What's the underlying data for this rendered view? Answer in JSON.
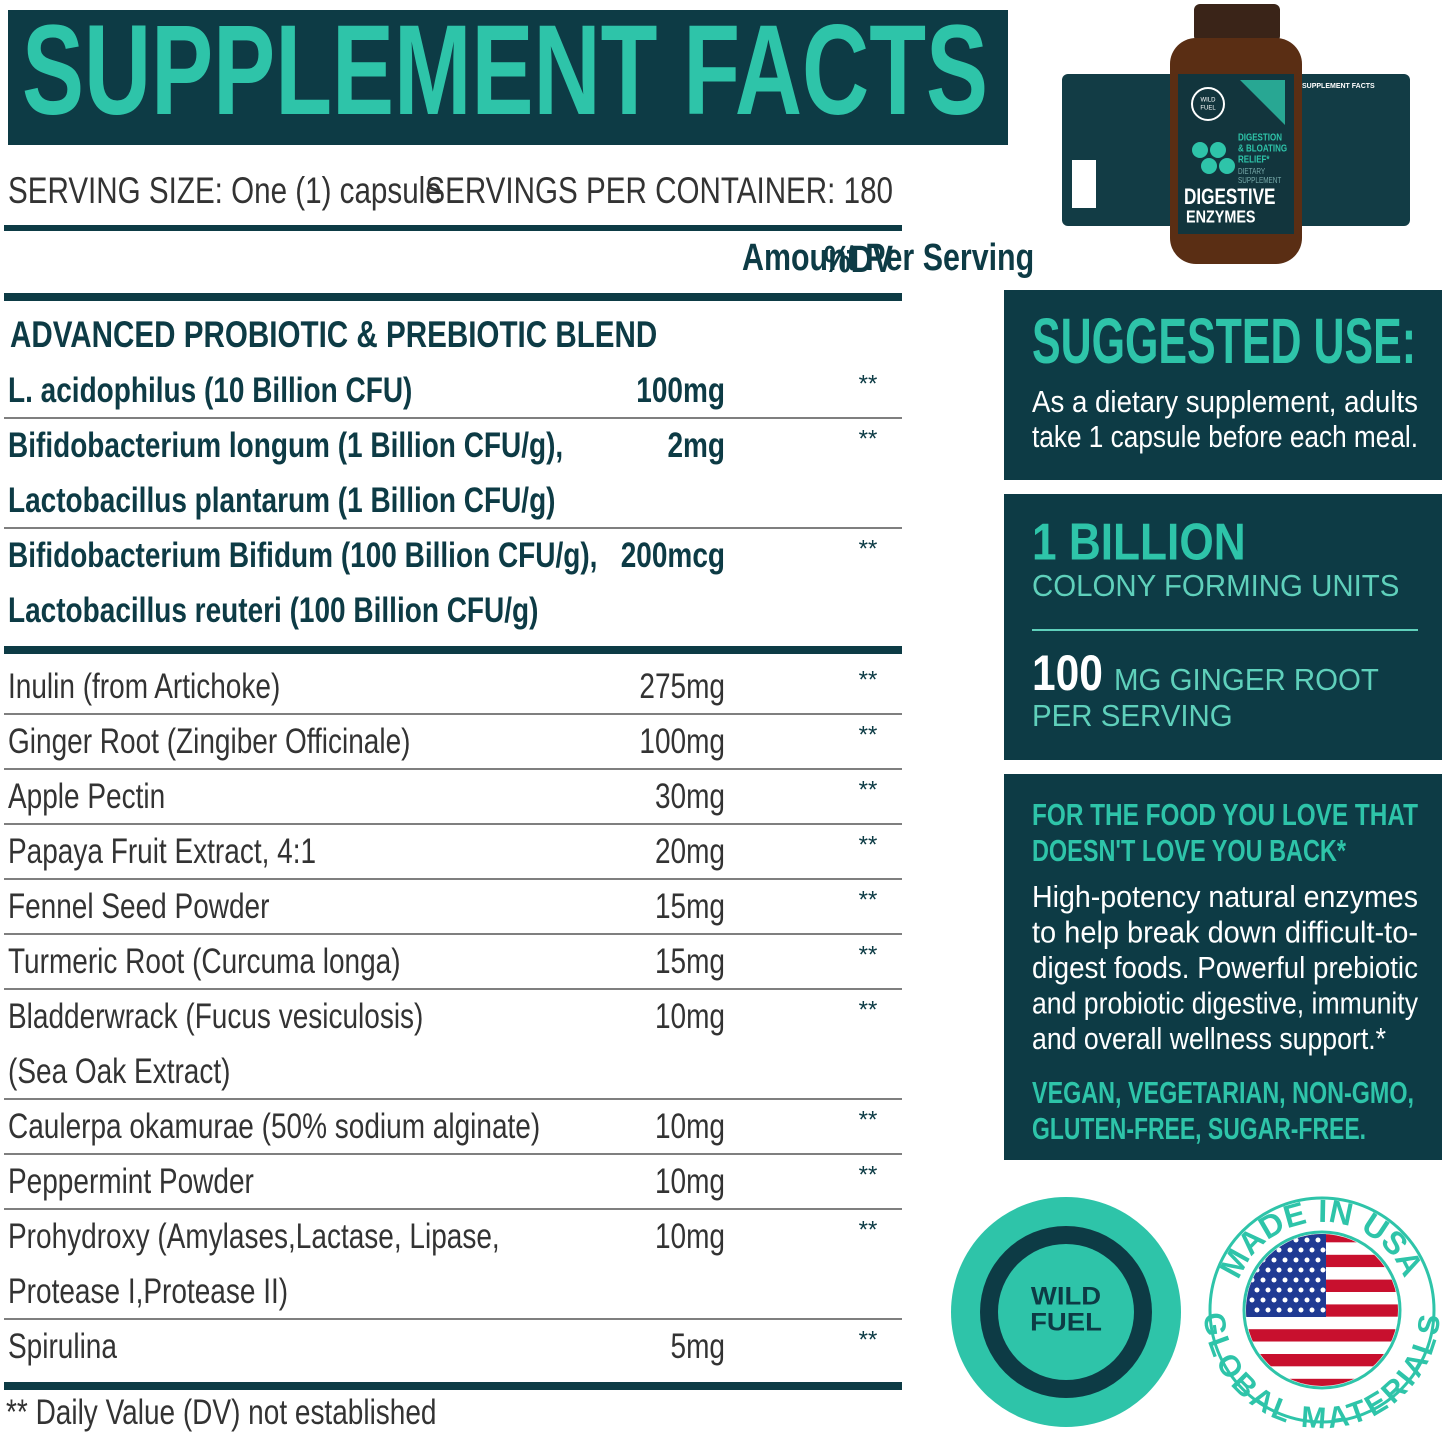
{
  "title": "SUPPLEMENT FACTS",
  "serving_size": "SERVING SIZE: One (1) capsule",
  "servings_per_container": "SERVINGS PER CONTAINER: 180",
  "header": {
    "amount": "Amount Per Serving",
    "dv": "%DV"
  },
  "blend": {
    "title": "ADVANCED PROBIOTIC & PREBIOTIC BLEND",
    "rows": [
      {
        "name": [
          "L. acidophilus (10 Billion CFU)"
        ],
        "amount": "100mg",
        "dv": "**"
      },
      {
        "name": [
          "Bifidobacterium longum (1 Billion CFU/g),",
          "Lactobacillus plantarum (1 Billion CFU/g)"
        ],
        "amount": "2mg",
        "dv": "**"
      },
      {
        "name": [
          "Bifidobacterium Bifidum (100 Billion CFU/g),",
          "Lactobacillus reuteri (100 Billion CFU/g)"
        ],
        "amount": "200mcg",
        "dv": "**"
      }
    ]
  },
  "rows": [
    {
      "name": [
        "Inulin (from Artichoke)"
      ],
      "amount": "275mg",
      "dv": "**"
    },
    {
      "name": [
        "Ginger Root (Zingiber Officinale)"
      ],
      "amount": "100mg",
      "dv": "**"
    },
    {
      "name": [
        "Apple Pectin"
      ],
      "amount": "30mg",
      "dv": "**"
    },
    {
      "name": [
        "Papaya Fruit Extract, 4:1"
      ],
      "amount": "20mg",
      "dv": "**"
    },
    {
      "name": [
        "Fennel Seed Powder"
      ],
      "amount": "15mg",
      "dv": "**"
    },
    {
      "name": [
        "Turmeric Root (Curcuma longa)"
      ],
      "amount": "15mg",
      "dv": "**"
    },
    {
      "name": [
        "Bladderwrack (Fucus vesiculosis)",
        "(Sea Oak Extract)"
      ],
      "amount": "10mg",
      "dv": "**"
    },
    {
      "name": [
        "Caulerpa okamurae (50% sodium alginate)"
      ],
      "amount": "10mg",
      "dv": "**"
    },
    {
      "name": [
        "Peppermint Powder"
      ],
      "amount": "10mg",
      "dv": "**"
    },
    {
      "name": [
        "Prohydroxy (Amylases,Lactase, Lipase,",
        "Protease I,Protease II)"
      ],
      "amount": "10mg",
      "dv": "**"
    },
    {
      "name": [
        "Spirulina"
      ],
      "amount": "5mg",
      "dv": "**"
    }
  ],
  "footnote": "** Daily Value (DV) not established",
  "bottle": {
    "brand": [
      "WILD",
      "FUEL"
    ],
    "tagline": [
      "DIGESTION",
      "& BLOATING",
      "RELIEF*"
    ],
    "kind": [
      "DIETARY",
      "SUPPLEMENT"
    ],
    "name": [
      "DIGESTIVE",
      "ENZYMES"
    ],
    "side_title": "SUPPLEMENT FACTS"
  },
  "suggested_use": {
    "title": "SUGGESTED USE:",
    "lines": [
      "As a dietary supplement, adults",
      "take 1 capsule before each meal."
    ]
  },
  "stats": {
    "cfu_big": "1 BILLION",
    "cfu_small": "COLONY FORMING UNITS",
    "ginger_big": "100",
    "ginger_small": [
      "MG GINGER ROOT",
      "PER SERVING"
    ]
  },
  "claims": {
    "title": [
      "FOR THE FOOD YOU LOVE THAT",
      "DOESN'T LOVE YOU BACK*"
    ],
    "lines": [
      "High-potency natural enzymes",
      "to help break down difficult-to-",
      "digest foods. Powerful prebiotic",
      "and probiotic digestive, immunity",
      "and overall wellness support.*"
    ],
    "tags": [
      "VEGAN, VEGETARIAN, NON-GMO,",
      "GLUTEN-FREE, SUGAR-FREE."
    ]
  },
  "logo": [
    "WILD",
    "FUEL"
  ],
  "badge": {
    "top": "MADE IN USA",
    "bottom": "GLOBAL MATERIALS"
  }
}
